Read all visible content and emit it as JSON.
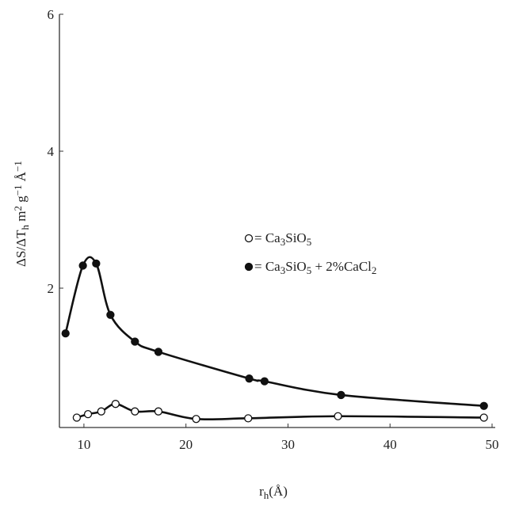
{
  "chart_data": {
    "type": "line",
    "x_label": [
      {
        "text": "r"
      },
      {
        "sub": "h"
      },
      {
        "text": "(Å)"
      }
    ],
    "y_label": [
      {
        "text": "ΔS/ΔT"
      },
      {
        "sub": "h"
      },
      {
        "text": " m"
      },
      {
        "sup": "2"
      },
      {
        "text": " g"
      },
      {
        "sup": "−1"
      },
      {
        "text": " Å"
      },
      {
        "sup": "−1"
      }
    ],
    "xlim": [
      7.6,
      50
    ],
    "ylim": [
      0,
      6
    ],
    "xticks": [
      10,
      20,
      30,
      40,
      50
    ],
    "yticks": [
      2,
      4,
      6
    ],
    "series": [
      {
        "name": [
          {
            "text": "= Ca"
          },
          {
            "sub": "3"
          },
          {
            "text": "SiO"
          },
          {
            "sub": "5"
          }
        ],
        "color": "#111111",
        "marker": "open",
        "x": [
          9.3,
          10.4,
          11.7,
          13.1,
          15.0,
          17.3,
          21.0,
          26.1,
          34.9,
          49.2
        ],
        "values": [
          0.11,
          0.16,
          0.2,
          0.31,
          0.2,
          0.2,
          0.09,
          0.1,
          0.13,
          0.11
        ]
      },
      {
        "name": [
          {
            "text": "= Ca"
          },
          {
            "sub": "3"
          },
          {
            "text": "SiO"
          },
          {
            "sub": "5"
          },
          {
            "text": " + 2%CaCl"
          },
          {
            "sub": "2"
          }
        ],
        "color": "#111111",
        "marker": "filled",
        "x": [
          8.2,
          9.9,
          11.2,
          12.6,
          15.0,
          17.3,
          26.2,
          27.7,
          35.2,
          49.2
        ],
        "values": [
          1.34,
          2.33,
          2.36,
          1.61,
          1.22,
          1.07,
          0.68,
          0.64,
          0.44,
          0.28
        ]
      }
    ]
  }
}
